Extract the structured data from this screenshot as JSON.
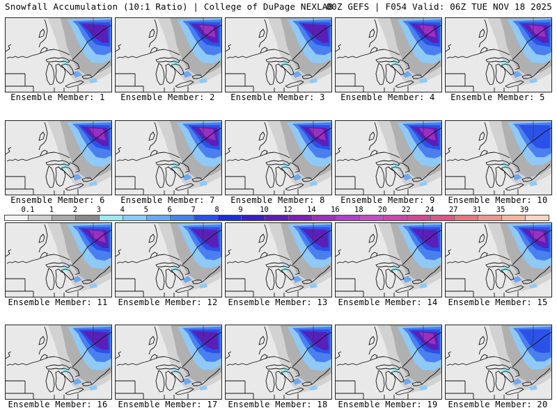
{
  "header": {
    "left": "Snowfall Accumulation (10:1 Ratio) | College of DuPage NEXLAB",
    "right": "00Z GEFS | F054 Valid: 06Z TUE NOV 18 2025"
  },
  "members": [
    {
      "label": "Ensemble Member: 1",
      "intensity": 0.85
    },
    {
      "label": "Ensemble Member: 2",
      "intensity": 0.9
    },
    {
      "label": "Ensemble Member: 3",
      "intensity": 0.85
    },
    {
      "label": "Ensemble Member: 4",
      "intensity": 0.95
    },
    {
      "label": "Ensemble Member: 5",
      "intensity": 0.9
    },
    {
      "label": "Ensemble Member: 6",
      "intensity": 1.0
    },
    {
      "label": "Ensemble Member: 7",
      "intensity": 1.0
    },
    {
      "label": "Ensemble Member: 8",
      "intensity": 1.0
    },
    {
      "label": "Ensemble Member: 9",
      "intensity": 1.0
    },
    {
      "label": "Ensemble Member: 10",
      "intensity": 0.55
    },
    {
      "label": "Ensemble Member: 11",
      "intensity": 1.0
    },
    {
      "label": "Ensemble Member: 12",
      "intensity": 0.85
    },
    {
      "label": "Ensemble Member: 13",
      "intensity": 0.7
    },
    {
      "label": "Ensemble Member: 14",
      "intensity": 0.85
    },
    {
      "label": "Ensemble Member: 15",
      "intensity": 1.0
    },
    {
      "label": "Ensemble Member: 16",
      "intensity": 0.75
    },
    {
      "label": "Ensemble Member: 17",
      "intensity": 0.7
    },
    {
      "label": "Ensemble Member: 18",
      "intensity": 0.85
    },
    {
      "label": "Ensemble Member: 19",
      "intensity": 0.9
    },
    {
      "label": "Ensemble Member: 20",
      "intensity": 0.5
    }
  ],
  "colorbar": {
    "ticks": [
      "0.1",
      "1",
      "2",
      "3",
      "4",
      "5",
      "6",
      "7",
      "8",
      "9",
      "10",
      "12",
      "14",
      "16",
      "18",
      "20",
      "22",
      "24",
      "27",
      "31",
      "35",
      "39"
    ],
    "colors": [
      "#f2f2f2",
      "#cfcfcf",
      "#a9a9a9",
      "#8a8a8a",
      "#9fe8f0",
      "#8fc9f5",
      "#6ea8f2",
      "#4a7ff0",
      "#2a52e8",
      "#1c2fd6",
      "#3a1fc0",
      "#5a1fb8",
      "#7a1fb8",
      "#9a2fc0",
      "#b040c8",
      "#c050c0",
      "#c84aa8",
      "#d04a90",
      "#d85a84",
      "#e07a80",
      "#e89a90",
      "#f0b8a0",
      "#f6d6c4"
    ]
  }
}
